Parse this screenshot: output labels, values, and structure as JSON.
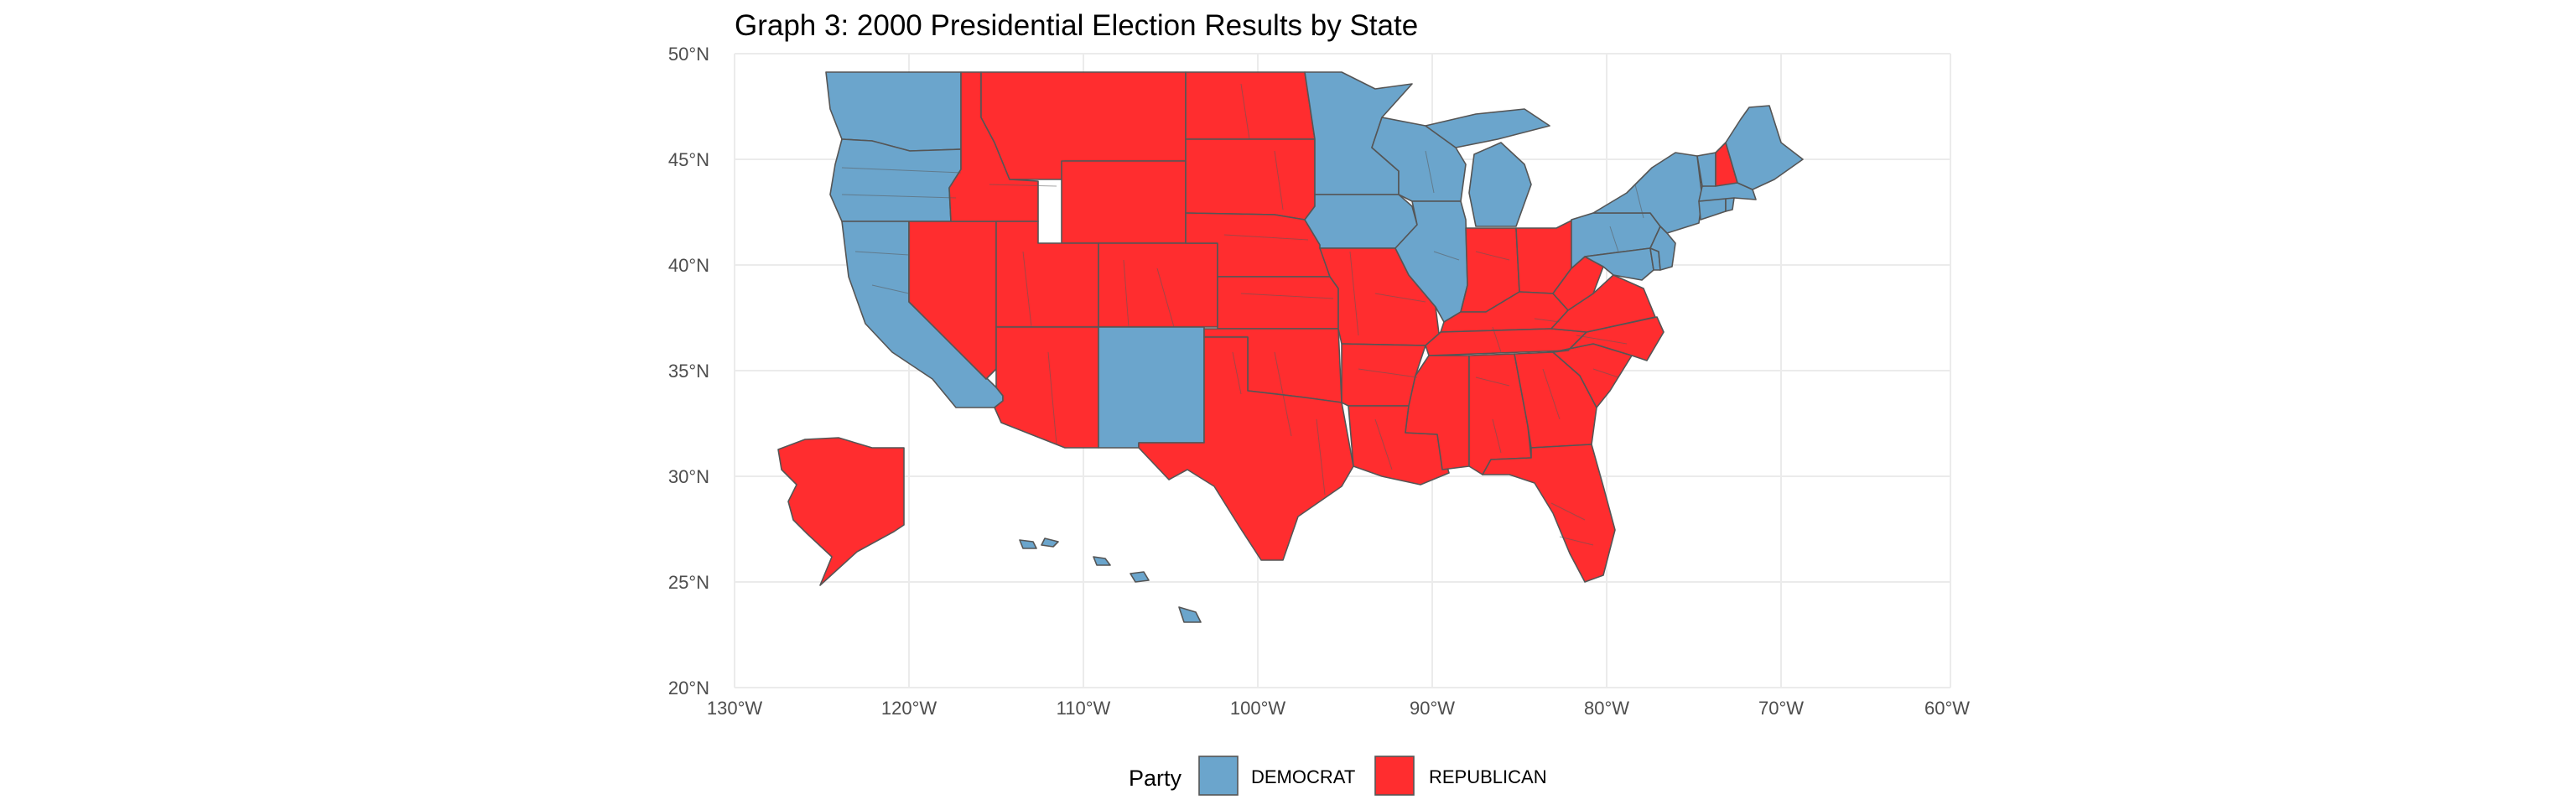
{
  "title": "Graph 3: 2000 Presidential Election Results by State",
  "colors": {
    "DEMOCRAT": "#6BA5CC",
    "REPUBLICAN": "#FF2D2F",
    "border": "#555555",
    "grid": "#ebebeb"
  },
  "axes": {
    "x_ticks": [
      "130°W",
      "120°W",
      "110°W",
      "100°W",
      "90°W",
      "80°W",
      "70°W",
      "60°W"
    ],
    "y_ticks": [
      "50°N",
      "45°N",
      "40°N",
      "35°N",
      "30°N",
      "25°N",
      "20°N"
    ],
    "xlim": [
      -130,
      -60
    ],
    "ylim": [
      20,
      50
    ]
  },
  "legend": {
    "title": "Party",
    "entries": [
      "DEMOCRAT",
      "REPUBLICAN"
    ],
    "position": "bottom"
  },
  "states": [
    {
      "name": "Washington",
      "party": "DEMOCRAT"
    },
    {
      "name": "Oregon",
      "party": "DEMOCRAT"
    },
    {
      "name": "California",
      "party": "DEMOCRAT"
    },
    {
      "name": "Nevada",
      "party": "REPUBLICAN"
    },
    {
      "name": "Idaho",
      "party": "REPUBLICAN"
    },
    {
      "name": "Montana",
      "party": "REPUBLICAN"
    },
    {
      "name": "Wyoming",
      "party": "REPUBLICAN"
    },
    {
      "name": "Utah",
      "party": "REPUBLICAN"
    },
    {
      "name": "Colorado",
      "party": "REPUBLICAN"
    },
    {
      "name": "Arizona",
      "party": "REPUBLICAN"
    },
    {
      "name": "New Mexico",
      "party": "DEMOCRAT"
    },
    {
      "name": "North Dakota",
      "party": "REPUBLICAN"
    },
    {
      "name": "South Dakota",
      "party": "REPUBLICAN"
    },
    {
      "name": "Nebraska",
      "party": "REPUBLICAN"
    },
    {
      "name": "Kansas",
      "party": "REPUBLICAN"
    },
    {
      "name": "Oklahoma",
      "party": "REPUBLICAN"
    },
    {
      "name": "Texas",
      "party": "REPUBLICAN"
    },
    {
      "name": "Minnesota",
      "party": "DEMOCRAT"
    },
    {
      "name": "Iowa",
      "party": "DEMOCRAT"
    },
    {
      "name": "Missouri",
      "party": "REPUBLICAN"
    },
    {
      "name": "Arkansas",
      "party": "REPUBLICAN"
    },
    {
      "name": "Louisiana",
      "party": "REPUBLICAN"
    },
    {
      "name": "Wisconsin",
      "party": "DEMOCRAT"
    },
    {
      "name": "Illinois",
      "party": "DEMOCRAT"
    },
    {
      "name": "Michigan",
      "party": "DEMOCRAT"
    },
    {
      "name": "Indiana",
      "party": "REPUBLICAN"
    },
    {
      "name": "Ohio",
      "party": "REPUBLICAN"
    },
    {
      "name": "Kentucky",
      "party": "REPUBLICAN"
    },
    {
      "name": "Tennessee",
      "party": "REPUBLICAN"
    },
    {
      "name": "Mississippi",
      "party": "REPUBLICAN"
    },
    {
      "name": "Alabama",
      "party": "REPUBLICAN"
    },
    {
      "name": "Georgia",
      "party": "REPUBLICAN"
    },
    {
      "name": "Florida",
      "party": "REPUBLICAN"
    },
    {
      "name": "South Carolina",
      "party": "REPUBLICAN"
    },
    {
      "name": "North Carolina",
      "party": "REPUBLICAN"
    },
    {
      "name": "Virginia",
      "party": "REPUBLICAN"
    },
    {
      "name": "West Virginia",
      "party": "REPUBLICAN"
    },
    {
      "name": "Pennsylvania",
      "party": "DEMOCRAT"
    },
    {
      "name": "New York",
      "party": "DEMOCRAT"
    },
    {
      "name": "Maryland",
      "party": "DEMOCRAT"
    },
    {
      "name": "Delaware",
      "party": "DEMOCRAT"
    },
    {
      "name": "New Jersey",
      "party": "DEMOCRAT"
    },
    {
      "name": "Connecticut",
      "party": "DEMOCRAT"
    },
    {
      "name": "Rhode Island",
      "party": "DEMOCRAT"
    },
    {
      "name": "Massachusetts",
      "party": "DEMOCRAT"
    },
    {
      "name": "Vermont",
      "party": "DEMOCRAT"
    },
    {
      "name": "New Hampshire",
      "party": "REPUBLICAN"
    },
    {
      "name": "Maine",
      "party": "DEMOCRAT"
    },
    {
      "name": "Alaska",
      "party": "REPUBLICAN"
    },
    {
      "name": "Hawaii",
      "party": "DEMOCRAT"
    }
  ]
}
